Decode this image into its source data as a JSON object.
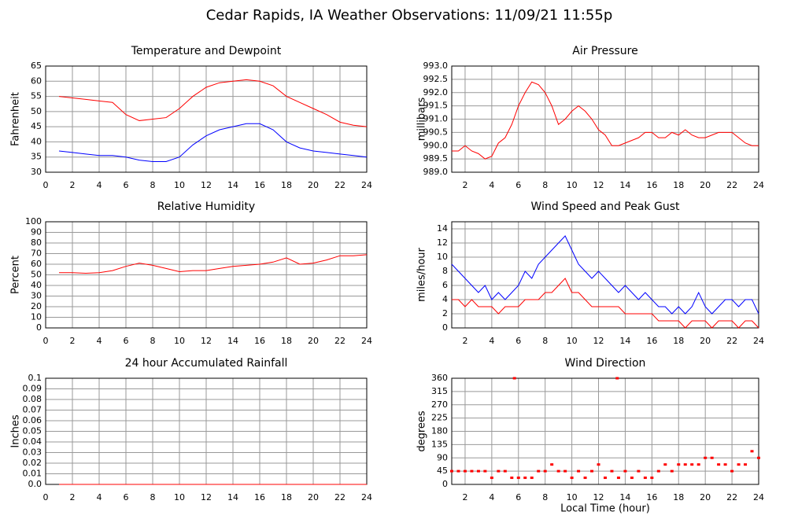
{
  "title": "Cedar Rapids, IA Weather Observations: 11/09/21 11:55p",
  "chart_data": [
    {
      "type": "line",
      "title": "Temperature and Dewpoint",
      "ylabel": "Fahrenheit",
      "x": [
        1,
        2,
        3,
        4,
        5,
        6,
        7,
        8,
        9,
        10,
        11,
        12,
        13,
        14,
        15,
        16,
        17,
        18,
        19,
        20,
        21,
        22,
        23,
        24
      ],
      "series": [
        {
          "color": "#ff0000",
          "values": [
            55,
            54.5,
            54,
            53.5,
            53,
            49,
            47,
            47.5,
            48,
            51,
            55,
            58,
            59.5,
            60,
            60.5,
            60,
            58.5,
            55,
            53,
            51,
            49,
            46.5,
            45.5,
            45
          ]
        },
        {
          "color": "#0000ff",
          "values": [
            37,
            36.5,
            36,
            35.5,
            35.5,
            35,
            34,
            33.5,
            33.5,
            35,
            39,
            42,
            44,
            45,
            46,
            46,
            44,
            40,
            38,
            37,
            36.5,
            36,
            35.5,
            35
          ]
        }
      ],
      "xlim": [
        0,
        24
      ],
      "xticks": [
        0,
        2,
        4,
        6,
        8,
        10,
        12,
        14,
        16,
        18,
        20,
        22,
        24
      ],
      "ylim": [
        30,
        65
      ],
      "yticks": [
        30,
        35,
        40,
        45,
        50,
        55,
        60,
        65
      ],
      "grid": true
    },
    {
      "type": "line",
      "title": "Air Pressure",
      "ylabel": "millibars",
      "x": [
        1,
        1.5,
        2,
        2.5,
        3,
        3.5,
        4,
        4.5,
        5,
        5.5,
        6,
        6.5,
        7,
        7.5,
        8,
        8.5,
        9,
        9.5,
        10,
        10.5,
        11,
        11.5,
        12,
        12.5,
        13,
        13.5,
        14,
        14.5,
        15,
        15.5,
        16,
        16.5,
        17,
        17.5,
        18,
        18.5,
        19,
        19.5,
        20,
        20.5,
        21,
        21.5,
        22,
        22.5,
        23,
        23.5,
        24
      ],
      "series": [
        {
          "color": "#ff0000",
          "values": [
            989.8,
            989.8,
            990.0,
            989.8,
            989.7,
            989.5,
            989.6,
            990.1,
            990.3,
            990.8,
            991.5,
            992.0,
            992.4,
            992.3,
            992.0,
            991.5,
            990.8,
            991.0,
            991.3,
            991.5,
            991.3,
            991.0,
            990.6,
            990.4,
            990.0,
            990.0,
            990.1,
            990.2,
            990.3,
            990.5,
            990.5,
            990.3,
            990.3,
            990.5,
            990.4,
            990.6,
            990.4,
            990.3,
            990.3,
            990.4,
            990.5,
            990.5,
            990.5,
            990.3,
            990.1,
            990.0,
            990.0
          ]
        }
      ],
      "xlim": [
        1,
        24
      ],
      "xticks": [
        2,
        4,
        6,
        8,
        10,
        12,
        14,
        16,
        18,
        20,
        22,
        24
      ],
      "ylim": [
        989,
        993
      ],
      "yticks": [
        {
          "value": 989,
          "label": "989.0"
        },
        989.5,
        {
          "value": 990,
          "label": "990.0"
        },
        990.5,
        {
          "value": 991,
          "label": "991.0"
        },
        991.5,
        {
          "value": 992,
          "label": "992.0"
        },
        992.5,
        {
          "value": 993,
          "label": "993.0"
        }
      ],
      "grid": true
    },
    {
      "type": "line",
      "title": "Relative Humidity",
      "ylabel": "Percent",
      "x": [
        1,
        2,
        3,
        4,
        5,
        6,
        7,
        8,
        9,
        10,
        11,
        12,
        13,
        14,
        15,
        16,
        17,
        18,
        19,
        20,
        21,
        22,
        23,
        24
      ],
      "series": [
        {
          "color": "#ff0000",
          "values": [
            52,
            52,
            51.5,
            52,
            54,
            58,
            61,
            59,
            56,
            53,
            54,
            54,
            56,
            58,
            59,
            60,
            62,
            66,
            60,
            61,
            64,
            68,
            68,
            69
          ]
        }
      ],
      "xlim": [
        0,
        24
      ],
      "xticks": [
        0,
        2,
        4,
        6,
        8,
        10,
        12,
        14,
        16,
        18,
        20,
        22,
        24
      ],
      "ylim": [
        0,
        100
      ],
      "yticks": [
        0,
        10,
        20,
        30,
        40,
        50,
        60,
        70,
        80,
        90,
        100
      ],
      "grid": true
    },
    {
      "type": "line",
      "title": "Wind Speed and Peak Gust",
      "ylabel": "miles/hour",
      "x": [
        1,
        1.5,
        2,
        2.5,
        3,
        3.5,
        4,
        4.5,
        5,
        5.5,
        6,
        6.5,
        7,
        7.5,
        8,
        8.5,
        9,
        9.5,
        10,
        10.5,
        11,
        11.5,
        12,
        12.5,
        13,
        13.5,
        14,
        14.5,
        15,
        15.5,
        16,
        16.5,
        17,
        17.5,
        18,
        18.5,
        19,
        19.5,
        20,
        20.5,
        21,
        21.5,
        22,
        22.5,
        23,
        23.5,
        24
      ],
      "series": [
        {
          "color": "#0000ff",
          "values": [
            9,
            8,
            7,
            6,
            5,
            6,
            4,
            5,
            4,
            5,
            6,
            8,
            7,
            9,
            10,
            11,
            12,
            13,
            11,
            9,
            8,
            7,
            8,
            7,
            6,
            5,
            6,
            5,
            4,
            5,
            4,
            3,
            3,
            2,
            3,
            2,
            3,
            5,
            3,
            2,
            3,
            4,
            4,
            3,
            4,
            4,
            2
          ]
        },
        {
          "color": "#ff0000",
          "values": [
            4,
            4,
            3,
            4,
            3,
            3,
            3,
            2,
            3,
            3,
            3,
            4,
            4,
            4,
            5,
            5,
            6,
            7,
            5,
            5,
            4,
            3,
            3,
            3,
            3,
            3,
            2,
            2,
            2,
            2,
            2,
            1,
            1,
            1,
            1,
            0,
            1,
            1,
            1,
            0,
            1,
            1,
            1,
            0,
            1,
            1,
            0
          ]
        }
      ],
      "xlim": [
        1,
        24
      ],
      "xticks": [
        2,
        4,
        6,
        8,
        10,
        12,
        14,
        16,
        18,
        20,
        22,
        24
      ],
      "ylim": [
        0,
        15
      ],
      "yticks": [
        0,
        2,
        4,
        6,
        8,
        10,
        12,
        14
      ],
      "grid": true
    },
    {
      "type": "line",
      "title": "24 hour Accumulated Rainfall",
      "ylabel": "Inches",
      "x": [
        1,
        2,
        3,
        4,
        5,
        6,
        7,
        8,
        9,
        10,
        11,
        12,
        13,
        14,
        15,
        16,
        17,
        18,
        19,
        20,
        21,
        22,
        23,
        24
      ],
      "series": [
        {
          "color": "#ff0000",
          "values": [
            0,
            0,
            0,
            0,
            0,
            0,
            0,
            0,
            0,
            0,
            0,
            0,
            0,
            0,
            0,
            0,
            0,
            0,
            0,
            0,
            0,
            0,
            0,
            0
          ]
        }
      ],
      "xlim": [
        0,
        24
      ],
      "xticks": [
        0,
        2,
        4,
        6,
        8,
        10,
        12,
        14,
        16,
        18,
        20,
        22,
        24
      ],
      "ylim": [
        0,
        0.1
      ],
      "yticks": [
        {
          "value": 0,
          "label": "0.0"
        },
        0.01,
        0.02,
        0.03,
        0.04,
        0.05,
        0.06,
        0.07,
        0.08,
        0.09,
        0.1
      ],
      "grid": true
    },
    {
      "type": "scatter",
      "title": "Wind Direction",
      "ylabel": "degrees",
      "xlabel": "Local Time (hour)",
      "x": [
        1,
        1.5,
        2,
        2.5,
        3,
        3.5,
        4,
        4.5,
        5,
        5.5,
        5.7,
        6,
        6.5,
        7,
        7.5,
        8,
        8.5,
        9,
        9.5,
        10,
        10.5,
        11,
        11.5,
        12,
        12.5,
        13,
        13.4,
        13.5,
        14,
        14.5,
        15,
        15.5,
        16,
        16.5,
        17,
        17.5,
        18,
        18.5,
        19,
        19.5,
        20,
        20.5,
        21,
        21.5,
        22,
        22.5,
        23,
        23.5,
        24
      ],
      "series": [
        {
          "color": "#ff0000",
          "values": [
            45,
            45,
            45,
            45,
            45,
            45,
            22.5,
            45,
            45,
            22.5,
            360,
            22.5,
            22.5,
            22.5,
            45,
            45,
            67.5,
            45,
            45,
            22.5,
            45,
            22.5,
            45,
            67.5,
            22.5,
            45,
            360,
            22.5,
            45,
            22.5,
            45,
            22.5,
            22.5,
            45,
            67.5,
            45,
            67.5,
            67.5,
            67.5,
            67.5,
            90,
            90,
            67.5,
            67.5,
            45,
            67.5,
            67.5,
            112.5,
            90
          ]
        }
      ],
      "xlim": [
        1,
        24
      ],
      "xticks": [
        2,
        4,
        6,
        8,
        10,
        12,
        14,
        16,
        18,
        20,
        22,
        24
      ],
      "ylim": [
        0,
        360
      ],
      "yticks": [
        0,
        45,
        90,
        135,
        180,
        225,
        270,
        315,
        360
      ],
      "grid": true
    }
  ]
}
